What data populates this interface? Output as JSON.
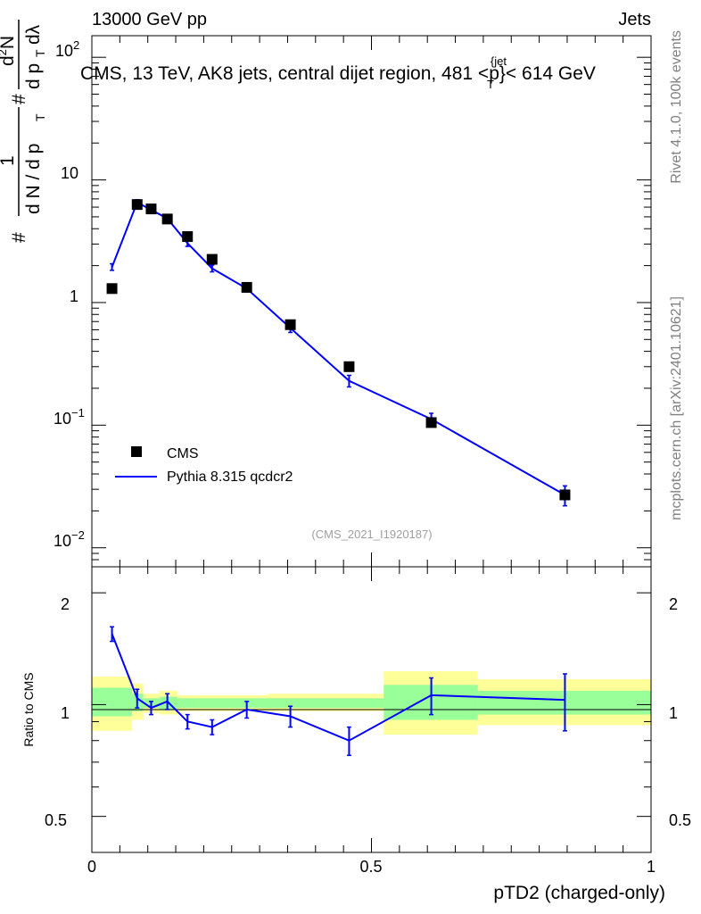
{
  "header": {
    "left": "13000 GeV pp",
    "right": "Jets"
  },
  "side_labels": {
    "rivet": "Rivet 4.1.0,  100k events",
    "mcplots": "mcplots.cern.ch [arXiv:2401.10621]"
  },
  "chart_data": [
    {
      "type": "scatter",
      "panel": "main",
      "title": "CMS, 13 TeV, AK8 jets, central dijet region, 481 <p_T^{jet}< 614 GeV",
      "title_parts": {
        "pre": "CMS, 13 TeV, AK8 jets, central dijet region, 481 <p",
        "sup": "{jet",
        "sub": "T",
        "post": "}< 614 GeV"
      },
      "ylabel_parts": {
        "hash1": "#",
        "one": "1",
        "dN_dpT": "d N / d p",
        "T1": "T",
        "hash2": "#",
        "d2N": "d",
        "two": "2",
        "N": "N",
        "dpT": "d p",
        "T2": "T",
        "dlambda": "dλ"
      },
      "yscale": "log",
      "ylim": [
        0.007,
        150
      ],
      "xlim": [
        0,
        1
      ],
      "ytick_labels": {
        "m2_base": "10",
        "m2_exp": "−2",
        "m1_base": "10",
        "m1_exp": "−1",
        "zero": "1",
        "one": "10",
        "two_base": "10",
        "two_exp": "2"
      },
      "watermark": "(CMS_2021_I1920187)",
      "legend": {
        "position": "bottom-left",
        "entries": [
          "CMS",
          "Pythia 8.315 qcdcr2"
        ]
      },
      "series": [
        {
          "name": "CMS",
          "style": "black-square-markers",
          "x": [
            0.036,
            0.081,
            0.106,
            0.135,
            0.171,
            0.215,
            0.277,
            0.355,
            0.46,
            0.607,
            0.846
          ],
          "values": [
            1.3,
            6.3,
            5.8,
            4.8,
            3.45,
            2.25,
            1.33,
            0.66,
            0.3,
            0.105,
            0.027
          ]
        },
        {
          "name": "Pythia 8.315 qcdcr2",
          "style": "blue-line-errorbars",
          "color": "#0000ff",
          "x": [
            0.036,
            0.081,
            0.106,
            0.135,
            0.171,
            0.215,
            0.277,
            0.355,
            0.46,
            0.607,
            0.846
          ],
          "values": [
            1.95,
            6.55,
            5.7,
            4.85,
            3.05,
            1.9,
            1.3,
            0.62,
            0.23,
            0.112,
            0.027
          ],
          "err": [
            0.12,
            0.35,
            0.25,
            0.22,
            0.18,
            0.12,
            0.08,
            0.05,
            0.025,
            0.013,
            0.005
          ]
        }
      ]
    },
    {
      "type": "line",
      "panel": "ratio",
      "ylabel": "Ratio to CMS",
      "yscale": "log",
      "ylim": [
        0.4,
        2.35
      ],
      "xlim": [
        0,
        1
      ],
      "xlabel": "pTD2 (charged-only)",
      "xtick_labels": [
        "0",
        "0.5",
        "1"
      ],
      "ytick_labels": [
        "0.5",
        "1",
        "2"
      ],
      "bands": {
        "edges": [
          0,
          0.072,
          0.092,
          0.121,
          0.153,
          0.19,
          0.24,
          0.315,
          0.522,
          0.69,
          1.0
        ],
        "yellow_lo": [
          0.85,
          0.91,
          0.95,
          0.94,
          0.96,
          0.96,
          0.96,
          0.96,
          0.83,
          0.88
        ],
        "yellow_hi": [
          1.19,
          1.14,
          1.07,
          1.09,
          1.06,
          1.06,
          1.06,
          1.07,
          1.23,
          1.17
        ],
        "green_lo": [
          0.93,
          0.96,
          0.98,
          0.97,
          0.98,
          0.98,
          0.98,
          0.98,
          0.91,
          0.94
        ],
        "green_hi": [
          1.11,
          1.07,
          1.04,
          1.05,
          1.04,
          1.04,
          1.04,
          1.04,
          1.13,
          1.09
        ]
      },
      "colors": {
        "yellow": "#ffff99",
        "green": "#99ff99",
        "line": "#0000ff"
      },
      "series": [
        {
          "name": "Pythia 8.315 qcdcr2 / CMS",
          "x": [
            0.036,
            0.081,
            0.106,
            0.135,
            0.171,
            0.215,
            0.277,
            0.355,
            0.46,
            0.607,
            0.846
          ],
          "values": [
            1.55,
            1.04,
            0.98,
            1.02,
            0.9,
            0.87,
            0.97,
            0.93,
            0.8,
            1.06,
            1.03
          ],
          "err": [
            0.07,
            0.06,
            0.04,
            0.05,
            0.04,
            0.04,
            0.05,
            0.06,
            0.07,
            0.12,
            0.18
          ]
        }
      ]
    }
  ]
}
